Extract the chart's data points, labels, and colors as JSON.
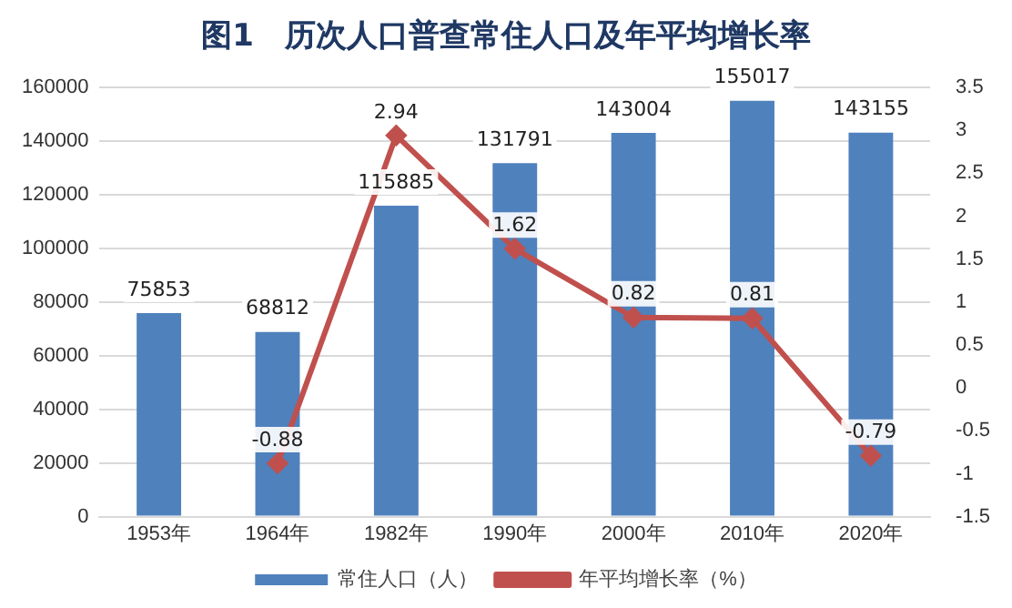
{
  "chart_data": {
    "type": "bar",
    "title": "图1　历次人口普查常住人口及年平均增长率",
    "categories": [
      "1953年",
      "1964年",
      "1982年",
      "1990年",
      "2000年",
      "2010年",
      "2020年"
    ],
    "series": [
      {
        "name": "常住人口（人）",
        "color": "#4f81bd",
        "values": [
          75853,
          68812,
          115885,
          131791,
          143004,
          155017,
          143155
        ]
      },
      {
        "name": "年平均增长率（%）",
        "type": "line",
        "axis": "y2",
        "color": "#c0504d",
        "marker": "diamond",
        "values": [
          null,
          -0.88,
          2.94,
          1.62,
          0.82,
          0.81,
          -0.79
        ]
      }
    ],
    "ylim": [
      0,
      160000
    ],
    "yticks": [
      0,
      20000,
      40000,
      60000,
      80000,
      100000,
      120000,
      140000,
      160000
    ],
    "y2lim": [
      -1.5,
      3.5
    ],
    "y2ticks": [
      -1.5,
      -1,
      -0.5,
      0,
      0.5,
      1,
      1.5,
      2,
      2.5,
      3,
      3.5
    ],
    "grid": "y",
    "legend": "bottom",
    "data_labels": true
  }
}
